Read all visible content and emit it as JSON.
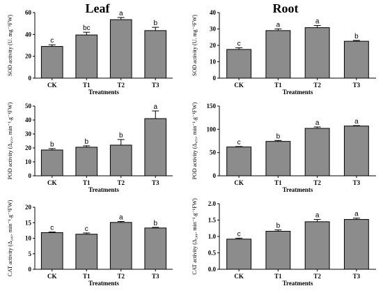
{
  "column_titles": [
    "Leaf",
    "Root"
  ],
  "colors": {
    "bar": "#8c8c8c",
    "axis": "#000000"
  },
  "chart_data": [
    {
      "type": "bar",
      "title": "",
      "xlabel": "Treatments",
      "ylabel": "SOD activity (U. mg⁻¹FW)",
      "categories": [
        "CK",
        "T1",
        "T2",
        "T3"
      ],
      "values": [
        29,
        39.5,
        53.5,
        43.5
      ],
      "errors": [
        1.5,
        2.5,
        2,
        3
      ],
      "significance": [
        "c",
        "bc",
        "a",
        "b"
      ],
      "ylim": [
        0,
        60
      ],
      "yticks": [
        0,
        20,
        40,
        60
      ],
      "grid": false
    },
    {
      "type": "bar",
      "title": "",
      "xlabel": "Treatments",
      "ylabel": "SOD activity (U. mg⁻¹FW)",
      "categories": [
        "CK",
        "T1",
        "T2",
        "T3"
      ],
      "values": [
        17.5,
        29,
        30.8,
        22.5
      ],
      "errors": [
        1,
        1,
        1.3,
        0.5
      ],
      "significance": [
        "c",
        "a",
        "a",
        "b"
      ],
      "ylim": [
        0,
        40
      ],
      "yticks": [
        0,
        10,
        20,
        30,
        40
      ],
      "grid": false
    },
    {
      "type": "bar",
      "title": "",
      "xlabel": "Treatments",
      "ylabel": "POD activity (Δ₄₇₀. min⁻¹.g⁻¹FW)",
      "categories": [
        "CK",
        "T1",
        "T2",
        "T3"
      ],
      "values": [
        18.5,
        20.5,
        22,
        41
      ],
      "errors": [
        1,
        1,
        4,
        5.5
      ],
      "significance": [
        "b",
        "b",
        "b",
        "a"
      ],
      "ylim": [
        0,
        50
      ],
      "yticks": [
        0,
        10,
        20,
        30,
        40,
        50
      ],
      "grid": false
    },
    {
      "type": "bar",
      "title": "",
      "xlabel": "Treatments",
      "ylabel": "POD activity (Δ₄₇₀. min⁻¹.g⁻¹FW)",
      "categories": [
        "CK",
        "T1",
        "T2",
        "T3"
      ],
      "values": [
        62,
        74,
        102,
        107
      ],
      "errors": [
        1,
        2,
        3,
        1
      ],
      "significance": [
        "c",
        "b",
        "a",
        "a"
      ],
      "ylim": [
        0,
        150
      ],
      "yticks": [
        0,
        50,
        100,
        150
      ],
      "grid": false
    },
    {
      "type": "bar",
      "title": "",
      "xlabel": "Treatments",
      "ylabel": "CAT activity (Δ₂₄₀. min⁻¹.g⁻¹FW)",
      "categories": [
        "CK",
        "T1",
        "T2",
        "T3"
      ],
      "values": [
        11.8,
        11.3,
        15.1,
        13.3
      ],
      "errors": [
        0.2,
        0.4,
        0.3,
        0.2
      ],
      "significance": [
        "c",
        "c",
        "a",
        "b"
      ],
      "ylim": [
        0,
        20
      ],
      "yticks": [
        0,
        5,
        10,
        15,
        20
      ],
      "grid": false
    },
    {
      "type": "bar",
      "title": "",
      "xlabel": "Treatments",
      "ylabel": "CAT activity (Δ₂₄₀. min⁻¹.g⁻¹FW)",
      "categories": [
        "CK",
        "T1",
        "T2",
        "T3"
      ],
      "values": [
        0.92,
        1.16,
        1.45,
        1.52
      ],
      "errors": [
        0.03,
        0.04,
        0.07,
        0.04
      ],
      "significance": [
        "c",
        "b",
        "a",
        "a"
      ],
      "ylim": [
        0,
        2.0
      ],
      "yticks": [
        0.0,
        0.5,
        1.0,
        1.5,
        2.0
      ],
      "tick_decimals": 1,
      "grid": false
    }
  ]
}
